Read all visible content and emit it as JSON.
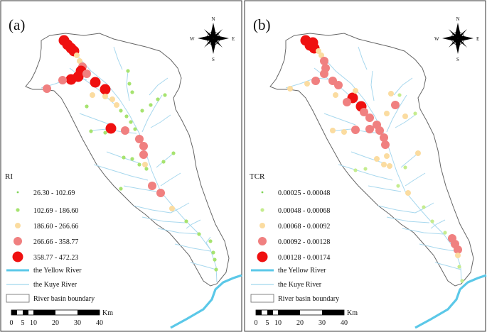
{
  "panels": [
    {
      "label": "(a)",
      "legend_title": "RI",
      "classes": [
        {
          "range": "26.30 - 102.69",
          "color": "#7fd454"
        },
        {
          "range": "102.69 - 186.60",
          "color": "#a6e36f"
        },
        {
          "range": "186.60 - 266.66",
          "color": "#fbdca0"
        },
        {
          "range": "266.66 - 358.77",
          "color": "#f08080"
        },
        {
          "range": "358.77 - 472.23",
          "color": "#ef1010"
        }
      ],
      "dots": [
        [
          0.97,
          0.12,
          4
        ],
        [
          0.96,
          0.135,
          4
        ],
        [
          1.02,
          0.13,
          4
        ],
        [
          1.06,
          0.15,
          4
        ],
        [
          1.07,
          0.18,
          4
        ],
        [
          1.1,
          0.215,
          3
        ],
        [
          1.14,
          0.215,
          3
        ],
        [
          1.18,
          0.245,
          3
        ],
        [
          1.15,
          0.275,
          3
        ],
        [
          1.1,
          0.28,
          3
        ],
        [
          1.1,
          0.31,
          3
        ],
        [
          1.06,
          0.335,
          3
        ],
        [
          1.03,
          0.355,
          3
        ],
        [
          1.0,
          0.37,
          3
        ],
        [
          1.03,
          0.41,
          2
        ],
        [
          1.06,
          0.44,
          3
        ],
        [
          1.09,
          0.47,
          3
        ],
        [
          1.08,
          0.5,
          2
        ],
        [
          1.13,
          0.52,
          3
        ],
        [
          1.17,
          0.56,
          1
        ],
        [
          1.08,
          0.565,
          3
        ],
        [
          1.02,
          0.575,
          4
        ],
        [
          0.97,
          0.58,
          4
        ],
        [
          0.93,
          0.61,
          3
        ],
        [
          0.87,
          0.62,
          3
        ],
        [
          0.8,
          0.6,
          4
        ],
        [
          0.85,
          0.64,
          3
        ],
        [
          0.78,
          0.67,
          3
        ],
        [
          0.95,
          0.63,
          3
        ],
        [
          0.7,
          0.34,
          1
        ],
        [
          0.68,
          0.39,
          2
        ],
        [
          0.62,
          0.4,
          3
        ],
        [
          0.57,
          0.43,
          3
        ],
        [
          0.53,
          0.46,
          3
        ],
        [
          0.5,
          0.43,
          4
        ],
        [
          0.55,
          0.34,
          3
        ],
        [
          0.6,
          0.32,
          3
        ],
        [
          0.66,
          0.28,
          3
        ],
        [
          0.7,
          0.25,
          3
        ],
        [
          0.73,
          0.22,
          2
        ],
        [
          0.78,
          0.22,
          2
        ],
        [
          0.85,
          0.25,
          2
        ],
        [
          0.88,
          0.22,
          1
        ],
        [
          0.93,
          0.2,
          2
        ]
      ]
    },
    {
      "label": "(b)",
      "legend_title": "TCR",
      "classes": [
        {
          "range": "0.00025 - 0.00048",
          "color": "#7fd454"
        },
        {
          "range": "0.00048 - 0.00068",
          "color": "#c5ec8f"
        },
        {
          "range": "0.00068 - 0.00092",
          "color": "#fbdca0"
        },
        {
          "range": "0.00092 - 0.00128",
          "color": "#f08080"
        },
        {
          "range": "0.00128 - 0.00174",
          "color": "#ef1010"
        }
      ],
      "dots": []
    }
  ],
  "rivers": {
    "yellow_label": "the Yellow River",
    "kuye_label": "the Kuye River",
    "boundary_label": "River basin boundary",
    "yellow_color": "#5bc8e8",
    "kuye_color": "#9fd6ec"
  },
  "scalebar": {
    "ticks": [
      "0",
      "5",
      "10",
      "20",
      "30",
      "40"
    ],
    "unit": "Km"
  },
  "compass": {
    "n": "N",
    "s": "S",
    "e": "E",
    "w": "W"
  }
}
